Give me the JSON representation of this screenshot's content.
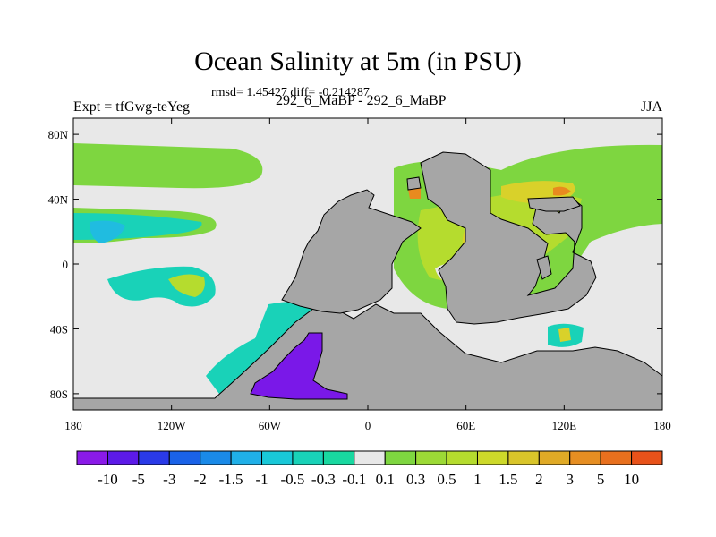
{
  "title": "Ocean Salinity at 5m (in PSU)",
  "stats": "rmsd= 1.45427 diff= -0.214287",
  "left_label": "Expt = tfGwg-teYeg",
  "center_label": "292_6_MaBP - 292_6_MaBP",
  "right_label": "JJA",
  "colors": {
    "land": "#a6a6a6",
    "ocean_neutral": "#e8e8e8",
    "green": "#7ed640",
    "yellow_green": "#b5dc2e",
    "yellow": "#d9d12a",
    "orange": "#e88a1f",
    "cyan": "#19d2b8",
    "blue": "#20bce0",
    "purple": "#7a18e8"
  },
  "map": {
    "projection": "cylindrical-equidistant",
    "lon_range": [
      -180,
      180
    ],
    "lat_range": [
      -90,
      90
    ],
    "x_ticks": [
      {
        "value": -180,
        "label": "180"
      },
      {
        "value": -120,
        "label": "120W"
      },
      {
        "value": -60,
        "label": "60W"
      },
      {
        "value": 0,
        "label": "0"
      },
      {
        "value": 60,
        "label": "60E"
      },
      {
        "value": 120,
        "label": "120E"
      },
      {
        "value": 180,
        "label": "180"
      }
    ],
    "y_ticks": [
      {
        "value": 80,
        "label": "80N"
      },
      {
        "value": 40,
        "label": "40N"
      },
      {
        "value": 0,
        "label": "0"
      },
      {
        "value": -40,
        "label": "40S"
      },
      {
        "value": -80,
        "label": "80S"
      }
    ]
  },
  "colorbar": {
    "colors": [
      "#8a1ae8",
      "#5c1ae8",
      "#2a3ae8",
      "#1a62e8",
      "#1a8ae8",
      "#20b0e8",
      "#19c8d8",
      "#19d2b8",
      "#19d8a0",
      "#e8e8e8",
      "#7ed640",
      "#9cda36",
      "#b5dc2e",
      "#cdd92a",
      "#d9c52a",
      "#e0aa26",
      "#e68e22",
      "#e8701e",
      "#e8521a"
    ],
    "labels": [
      "-10",
      "-5",
      "-3",
      "-2",
      "-1.5",
      "-1",
      "-0.5",
      "-0.3",
      "-0.1",
      "0.1",
      "0.3",
      "0.5",
      "1",
      "1.5",
      "2",
      "3",
      "5",
      "10"
    ]
  }
}
